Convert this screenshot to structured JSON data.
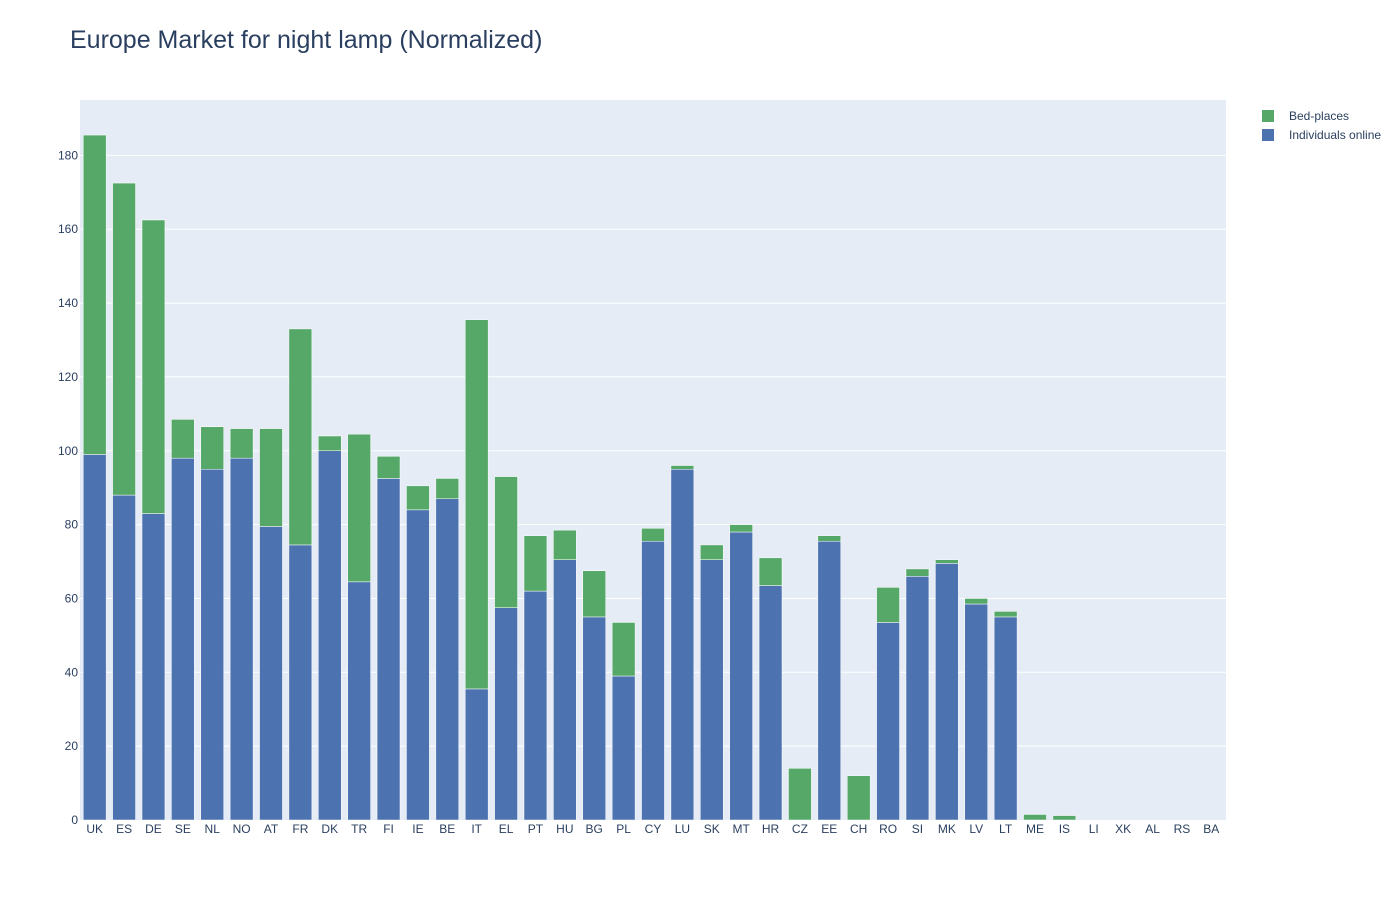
{
  "chart_data": {
    "type": "bar",
    "stacked": true,
    "title": "Europe Market for night lamp (Normalized)",
    "xlabel": "",
    "ylabel": "",
    "ylim": [
      0,
      195
    ],
    "yticks": [
      0,
      20,
      40,
      60,
      80,
      100,
      120,
      140,
      160,
      180
    ],
    "grid": true,
    "legend_position": "top-right",
    "categories": [
      "UK",
      "ES",
      "DE",
      "SE",
      "NL",
      "NO",
      "AT",
      "FR",
      "DK",
      "TR",
      "FI",
      "IE",
      "BE",
      "IT",
      "EL",
      "PT",
      "HU",
      "BG",
      "PL",
      "CY",
      "LU",
      "SK",
      "MT",
      "HR",
      "CZ",
      "EE",
      "CH",
      "RO",
      "SI",
      "MK",
      "LV",
      "LT",
      "ME",
      "IS",
      "LI",
      "XK",
      "AL",
      "RS",
      "BA"
    ],
    "series": [
      {
        "name": "Individuals online",
        "color": "#4c72b0",
        "values": [
          99,
          88,
          83,
          98,
          95,
          98,
          79.5,
          74.5,
          100,
          64.5,
          92.5,
          84,
          87,
          35.5,
          57.5,
          62,
          70.5,
          55,
          39,
          75.5,
          95,
          70.5,
          78,
          63.5,
          0,
          75.5,
          0,
          53.5,
          66,
          69.5,
          58.5,
          55,
          0,
          0,
          0,
          0,
          0,
          0,
          0
        ]
      },
      {
        "name": "Bed-places",
        "color": "#55a868",
        "values": [
          86.5,
          84.5,
          79.5,
          10.5,
          11.5,
          8,
          26.5,
          58.5,
          4,
          40,
          6,
          6.5,
          5.5,
          100,
          35.5,
          15,
          8,
          12.5,
          14.5,
          3.5,
          1,
          4,
          2,
          7.5,
          14,
          1.5,
          12,
          9.5,
          2,
          1,
          1.5,
          1.5,
          1.5,
          1.2,
          0,
          0,
          0,
          0,
          0
        ]
      }
    ]
  }
}
